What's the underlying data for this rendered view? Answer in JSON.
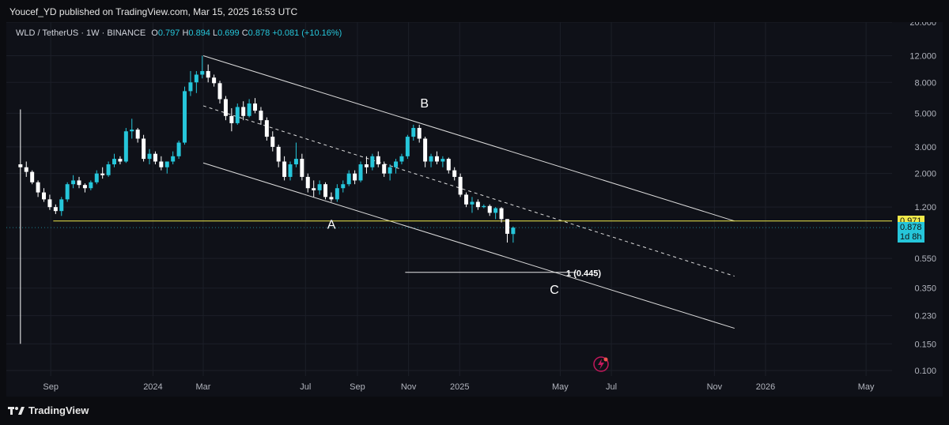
{
  "header": {
    "published": "Youcef_YD published on TradingView.com, Mar 15, 2025 16:53 UTC"
  },
  "legend": {
    "symbol": "WLD / TetherUS · 1W · BINANCE",
    "o_label": "O",
    "o": "0.797",
    "h_label": "H",
    "h": "0.894",
    "l_label": "L",
    "l": "0.699",
    "c_label": "C",
    "c": "0.878",
    "change": "+0.081 (+10.16%)"
  },
  "footer": {
    "brand": "TradingView"
  },
  "price_tags": {
    "yellow": "0.971",
    "last": "0.878",
    "countdown": "1d 8h"
  },
  "chart_data": {
    "type": "candlestick",
    "scale": "log",
    "ylim": [
      0.1,
      20
    ],
    "xlim": [
      "2023-07-10",
      "2026-06-01"
    ],
    "y_ticks": [
      "20.000",
      "12.000",
      "8.000",
      "5.000",
      "3.000",
      "2.000",
      "1.200",
      "0.550",
      "0.350",
      "0.230",
      "0.150",
      "0.100"
    ],
    "y_tick_values": [
      20,
      12,
      8,
      5,
      3,
      2,
      1.2,
      0.55,
      0.35,
      0.23,
      0.15,
      0.1
    ],
    "x_ticks": [
      {
        "label": "Sep",
        "date": "2023-09-01"
      },
      {
        "label": "2024",
        "date": "2024-01-01"
      },
      {
        "label": "Mar",
        "date": "2024-03-01"
      },
      {
        "label": "Jul",
        "date": "2024-07-01"
      },
      {
        "label": "Sep",
        "date": "2024-09-01"
      },
      {
        "label": "Nov",
        "date": "2024-11-01"
      },
      {
        "label": "2025",
        "date": "2025-01-01"
      },
      {
        "label": "May",
        "date": "2025-05-01"
      },
      {
        "label": "Jul",
        "date": "2025-07-01"
      },
      {
        "label": "Nov",
        "date": "2025-11-01"
      },
      {
        "label": "2026",
        "date": "2026-01-01"
      },
      {
        "label": "May",
        "date": "2026-05-01"
      }
    ],
    "candles": [
      [
        "2023-07-24",
        2.3,
        5.3,
        0.15,
        2.2
      ],
      [
        "2023-07-31",
        2.2,
        2.4,
        1.9,
        2.05
      ],
      [
        "2023-08-07",
        2.05,
        2.1,
        1.7,
        1.75
      ],
      [
        "2023-08-14",
        1.75,
        1.8,
        1.4,
        1.5
      ],
      [
        "2023-08-21",
        1.5,
        1.6,
        1.3,
        1.35
      ],
      [
        "2023-08-28",
        1.35,
        1.45,
        1.15,
        1.2
      ],
      [
        "2023-09-04",
        1.2,
        1.25,
        1.08,
        1.13
      ],
      [
        "2023-09-11",
        1.13,
        1.4,
        1.05,
        1.35
      ],
      [
        "2023-09-18",
        1.35,
        1.75,
        1.3,
        1.7
      ],
      [
        "2023-09-25",
        1.7,
        1.95,
        1.6,
        1.8
      ],
      [
        "2023-10-02",
        1.8,
        1.9,
        1.6,
        1.68
      ],
      [
        "2023-10-09",
        1.68,
        1.72,
        1.5,
        1.6
      ],
      [
        "2023-10-16",
        1.6,
        1.8,
        1.55,
        1.75
      ],
      [
        "2023-10-23",
        1.75,
        2.1,
        1.7,
        2.0
      ],
      [
        "2023-10-30",
        2.0,
        2.2,
        1.85,
        1.95
      ],
      [
        "2023-11-06",
        1.95,
        2.4,
        1.9,
        2.3
      ],
      [
        "2023-11-13",
        2.3,
        2.7,
        2.2,
        2.5
      ],
      [
        "2023-11-20",
        2.5,
        2.6,
        2.3,
        2.4
      ],
      [
        "2023-11-27",
        2.4,
        4.0,
        2.35,
        3.8
      ],
      [
        "2023-12-04",
        3.8,
        4.6,
        3.4,
        3.9
      ],
      [
        "2023-12-11",
        3.9,
        4.0,
        3.2,
        3.4
      ],
      [
        "2023-12-18",
        3.4,
        3.6,
        2.4,
        2.5
      ],
      [
        "2023-12-25",
        2.5,
        2.9,
        2.3,
        2.7
      ],
      [
        "2024-01-01",
        2.7,
        2.8,
        2.3,
        2.4
      ],
      [
        "2024-01-08",
        2.4,
        2.6,
        2.1,
        2.2
      ],
      [
        "2024-01-15",
        2.2,
        2.4,
        2.0,
        2.4
      ],
      [
        "2024-01-22",
        2.4,
        2.8,
        2.3,
        2.6
      ],
      [
        "2024-01-29",
        2.6,
        3.3,
        2.5,
        3.2
      ],
      [
        "2024-02-05",
        3.2,
        7.5,
        3.1,
        7.0
      ],
      [
        "2024-02-12",
        7.0,
        9.5,
        6.5,
        8.0
      ],
      [
        "2024-02-19",
        8.0,
        9.5,
        6.8,
        9.0
      ],
      [
        "2024-02-26",
        9.0,
        12.0,
        8.5,
        9.5
      ],
      [
        "2024-03-04",
        9.5,
        10.5,
        8.0,
        8.6
      ],
      [
        "2024-03-11",
        8.6,
        9.0,
        7.5,
        7.9
      ],
      [
        "2024-03-18",
        7.9,
        8.2,
        5.8,
        6.2
      ],
      [
        "2024-03-25",
        6.2,
        6.5,
        4.5,
        4.8
      ],
      [
        "2024-04-01",
        4.8,
        5.4,
        3.8,
        4.3
      ],
      [
        "2024-04-08",
        4.3,
        5.8,
        4.2,
        5.5
      ],
      [
        "2024-04-15",
        5.5,
        6.0,
        4.5,
        4.8
      ],
      [
        "2024-04-22",
        4.8,
        6.2,
        4.7,
        5.8
      ],
      [
        "2024-04-29",
        5.8,
        6.3,
        5.0,
        5.2
      ],
      [
        "2024-05-06",
        5.2,
        5.5,
        4.2,
        4.5
      ],
      [
        "2024-05-13",
        4.5,
        4.7,
        3.3,
        3.5
      ],
      [
        "2024-05-20",
        3.5,
        3.8,
        2.8,
        3.0
      ],
      [
        "2024-05-27",
        3.0,
        3.1,
        2.2,
        2.4
      ],
      [
        "2024-06-03",
        2.4,
        2.6,
        1.8,
        1.9
      ],
      [
        "2024-06-10",
        1.9,
        2.4,
        1.8,
        2.3
      ],
      [
        "2024-06-17",
        2.3,
        3.2,
        2.2,
        2.5
      ],
      [
        "2024-06-24",
        2.5,
        2.7,
        1.8,
        1.9
      ],
      [
        "2024-07-01",
        1.9,
        2.0,
        1.5,
        1.6
      ],
      [
        "2024-07-08",
        1.6,
        1.8,
        1.4,
        1.55
      ],
      [
        "2024-07-15",
        1.55,
        1.8,
        1.45,
        1.7
      ],
      [
        "2024-07-22",
        1.7,
        1.75,
        1.35,
        1.4
      ],
      [
        "2024-07-29",
        1.4,
        1.5,
        1.3,
        1.35
      ],
      [
        "2024-08-05",
        1.35,
        1.7,
        1.3,
        1.6
      ],
      [
        "2024-08-12",
        1.6,
        1.8,
        1.5,
        1.7
      ],
      [
        "2024-08-19",
        1.7,
        2.1,
        1.65,
        2.0
      ],
      [
        "2024-08-26",
        2.0,
        2.1,
        1.7,
        1.8
      ],
      [
        "2024-09-02",
        1.8,
        2.4,
        1.75,
        2.3
      ],
      [
        "2024-09-09",
        2.3,
        2.6,
        2.0,
        2.2
      ],
      [
        "2024-09-16",
        2.2,
        2.7,
        2.1,
        2.6
      ],
      [
        "2024-09-23",
        2.6,
        2.8,
        2.2,
        2.3
      ],
      [
        "2024-09-30",
        2.3,
        2.4,
        1.9,
        2.0
      ],
      [
        "2024-10-07",
        2.0,
        2.3,
        1.8,
        2.2
      ],
      [
        "2024-10-14",
        2.2,
        2.5,
        2.0,
        2.4
      ],
      [
        "2024-10-21",
        2.4,
        2.7,
        2.3,
        2.6
      ],
      [
        "2024-10-28",
        2.6,
        3.6,
        2.5,
        3.5
      ],
      [
        "2024-11-04",
        3.5,
        4.2,
        3.3,
        4.0
      ],
      [
        "2024-11-11",
        4.0,
        4.2,
        3.2,
        3.4
      ],
      [
        "2024-11-18",
        3.4,
        3.5,
        2.2,
        2.4
      ],
      [
        "2024-11-25",
        2.4,
        2.7,
        2.2,
        2.6
      ],
      [
        "2024-12-02",
        2.6,
        2.8,
        2.3,
        2.4
      ],
      [
        "2024-12-09",
        2.4,
        2.6,
        2.2,
        2.5
      ],
      [
        "2024-12-16",
        2.5,
        2.55,
        2.0,
        2.1
      ],
      [
        "2024-12-23",
        2.1,
        2.2,
        1.8,
        1.9
      ],
      [
        "2024-12-30",
        1.9,
        2.0,
        1.4,
        1.45
      ],
      [
        "2025-01-06",
        1.45,
        1.5,
        1.2,
        1.25
      ],
      [
        "2025-01-13",
        1.25,
        1.4,
        1.1,
        1.3
      ],
      [
        "2025-01-20",
        1.3,
        1.35,
        1.15,
        1.2
      ],
      [
        "2025-01-27",
        1.2,
        1.25,
        1.18,
        1.22
      ],
      [
        "2025-02-03",
        1.22,
        1.25,
        1.05,
        1.1
      ],
      [
        "2025-02-10",
        1.1,
        1.2,
        1.0,
        1.18
      ],
      [
        "2025-02-17",
        1.18,
        1.2,
        0.95,
        1.0
      ],
      [
        "2025-02-24",
        1.0,
        1.0,
        0.7,
        0.8
      ],
      [
        "2025-03-03",
        0.797,
        0.894,
        0.699,
        0.878
      ]
    ],
    "annotations": [
      {
        "text": "A",
        "date": "2024-08-01",
        "price": 0.92
      },
      {
        "text": "B",
        "date": "2024-11-20",
        "price": 5.8
      },
      {
        "text": "C",
        "date": "2025-04-24",
        "price": 0.34
      },
      {
        "text": "1 (0.445)",
        "date": "2025-05-29",
        "price": 0.445
      }
    ],
    "levels": [
      {
        "name": "yellow-level",
        "price": 0.971,
        "from": "2023-09-04",
        "to": "2026-06-01",
        "color": "#f0e94a"
      },
      {
        "name": "target-level",
        "price": 0.445,
        "from": "2024-10-28",
        "to": "2025-05-20",
        "color": "#e6e6e6"
      }
    ],
    "channel": {
      "upper": [
        [
          "2024-03-01",
          12.0
        ],
        [
          "2025-11-25",
          0.971
        ]
      ],
      "mid": [
        [
          "2024-03-01",
          5.6
        ],
        [
          "2025-11-25",
          0.42
        ]
      ],
      "lower": [
        [
          "2024-03-01",
          2.35
        ],
        [
          "2025-11-25",
          0.19
        ]
      ]
    },
    "colors": {
      "up": "#26c6da",
      "down": "#ffffff",
      "grid": "#1c1f28",
      "axis_text": "#b2b5be"
    }
  }
}
